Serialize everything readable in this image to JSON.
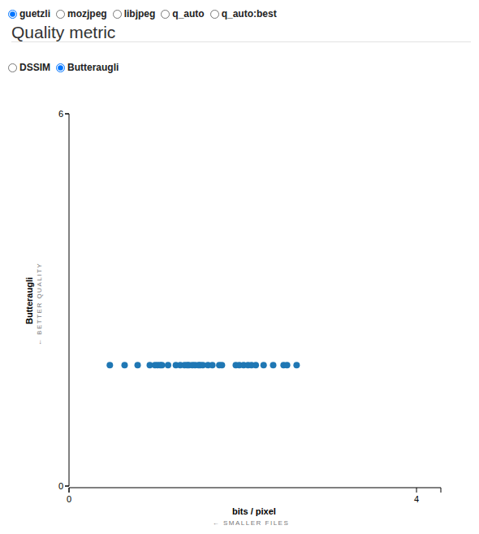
{
  "controls": {
    "encoders": [
      {
        "label": "guetzli",
        "checked": true
      },
      {
        "label": "mozjpeg",
        "checked": false
      },
      {
        "label": "libjpeg",
        "checked": false
      },
      {
        "label": "q_auto",
        "checked": false
      },
      {
        "label": "q_auto:best",
        "checked": false
      }
    ],
    "heading": "Quality metric",
    "metrics": [
      {
        "label": "DSSIM",
        "checked": false
      },
      {
        "label": "Butteraugli",
        "checked": true
      }
    ]
  },
  "chart_data": {
    "type": "scatter",
    "ylabel": "Butteraugli",
    "ylabel_hint": "← BETTER QUALITY",
    "xlabel": "bits / pixel",
    "xlabel_hint": "← SMALLER FILES",
    "color": "#1f77b4",
    "marker": "circle",
    "x": [
      0.47,
      0.64,
      0.79,
      0.93,
      0.99,
      1.02,
      1.05,
      1.07,
      1.14,
      1.23,
      1.28,
      1.33,
      1.36,
      1.38,
      1.42,
      1.45,
      1.49,
      1.51,
      1.54,
      1.6,
      1.65,
      1.73,
      1.76,
      1.92,
      1.96,
      2.01,
      2.06,
      2.1,
      2.15,
      2.24,
      2.35,
      2.47,
      2.51,
      2.62
    ],
    "values": [
      1.95,
      1.95,
      1.95,
      1.95,
      1.95,
      1.95,
      1.95,
      1.95,
      1.95,
      1.95,
      1.95,
      1.95,
      1.95,
      1.95,
      1.95,
      1.95,
      1.95,
      1.95,
      1.95,
      1.95,
      1.95,
      1.95,
      1.95,
      1.95,
      1.95,
      1.95,
      1.95,
      1.95,
      1.95,
      1.95,
      1.95,
      1.95,
      1.95,
      1.95
    ],
    "xlim": [
      0,
      4.28
    ],
    "xticks": [
      0,
      4
    ],
    "ylim": [
      0,
      6
    ],
    "yticks": [
      0,
      6
    ],
    "grid": false
  }
}
